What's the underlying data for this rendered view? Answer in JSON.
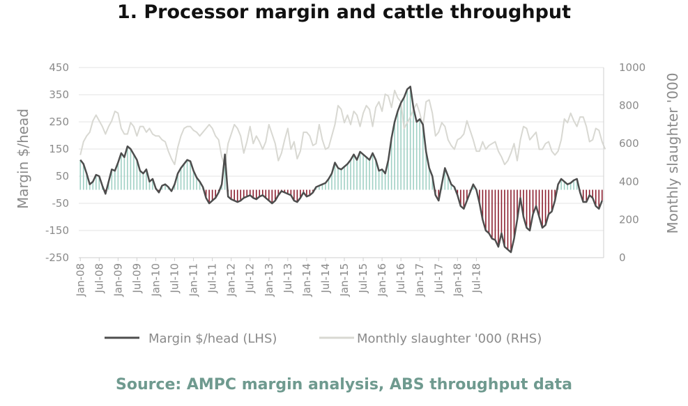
{
  "title": "1. Processor margin and cattle throughput",
  "source": "Source: AMPC margin analysis, ABS throughput data",
  "colors": {
    "margin_line": "#4d4d4d",
    "slaughter_line": "#d8d8d2",
    "positive_fill": "#9fd0c4",
    "negative_fill": "#8b1e2e",
    "grid": "#e3e3e3",
    "text": "#8a8a8a",
    "source_text": "#6f9a8f"
  },
  "chart_data": {
    "type": "line",
    "title": "1. Processor margin and cattle throughput",
    "ylabel_left": "Margin $/head",
    "ylabel_right": "Monthly slaughter '000",
    "ylim_left": [
      -250,
      450
    ],
    "ylim_right": [
      0,
      1000
    ],
    "yticks_left": [
      "450",
      "350",
      "250",
      "150",
      "50",
      "-50",
      "-150",
      "-250"
    ],
    "yticks_right": [
      "1000",
      "800",
      "600",
      "400",
      "200",
      "0"
    ],
    "x_tick_labels": [
      "Jan-08",
      "Jul-08",
      "Jan-09",
      "Jul-09",
      "Jan-10",
      "Jul-10",
      "Jan-11",
      "Jul-11",
      "Jan-12",
      "Jul-12",
      "Jan-13",
      "Jul-13",
      "Jan-14",
      "Jul-14",
      "Jan-15",
      "Jul-15",
      "Jan-16",
      "Jul-16",
      "Jan-17",
      "Jul-17",
      "Jan-18",
      "Jul-18"
    ],
    "grid": true,
    "legend_position": "bottom",
    "series": [
      {
        "name": "Margin $/head (LHS)",
        "axis": "left",
        "start": "Jan-08",
        "frequency": "monthly",
        "values": [
          110,
          95,
          60,
          20,
          30,
          55,
          50,
          15,
          -15,
          30,
          75,
          70,
          100,
          135,
          120,
          160,
          150,
          130,
          110,
          70,
          60,
          75,
          30,
          40,
          5,
          -10,
          15,
          20,
          10,
          -5,
          20,
          60,
          80,
          95,
          110,
          105,
          70,
          45,
          30,
          10,
          -30,
          -50,
          -40,
          -30,
          -10,
          20,
          130,
          -25,
          -35,
          -40,
          -45,
          -40,
          -30,
          -25,
          -20,
          -30,
          -35,
          -25,
          -20,
          -30,
          -40,
          -50,
          -40,
          -20,
          -5,
          -10,
          -15,
          -20,
          -40,
          -45,
          -30,
          -10,
          -25,
          -20,
          -10,
          10,
          15,
          20,
          25,
          40,
          60,
          100,
          80,
          75,
          85,
          95,
          110,
          130,
          110,
          140,
          130,
          120,
          110,
          135,
          110,
          70,
          75,
          60,
          110,
          190,
          250,
          290,
          320,
          340,
          370,
          380,
          300,
          250,
          260,
          240,
          140,
          80,
          50,
          -20,
          -40,
          20,
          80,
          50,
          20,
          10,
          -20,
          -60,
          -70,
          -40,
          -10,
          20,
          0,
          -50,
          -110,
          -150,
          -160,
          -180,
          -185,
          -210,
          -160,
          -210,
          -220,
          -230,
          -180,
          -110,
          -30,
          -100,
          -140,
          -150,
          -90,
          -60,
          -100,
          -140,
          -130,
          -90,
          -80,
          -40,
          20,
          40,
          30,
          20,
          25,
          35,
          40,
          -10,
          -45,
          -45,
          -20,
          -30,
          -60,
          -70,
          -40
        ]
      },
      {
        "name": "Monthly slaughter '000 (RHS)",
        "axis": "right",
        "start": "Jan-08",
        "frequency": "monthly",
        "values": [
          540,
          610,
          640,
          660,
          720,
          750,
          720,
          690,
          650,
          690,
          720,
          770,
          760,
          680,
          650,
          650,
          710,
          690,
          640,
          690,
          690,
          660,
          680,
          650,
          640,
          640,
          620,
          610,
          560,
          520,
          490,
          580,
          640,
          680,
          690,
          690,
          670,
          660,
          640,
          660,
          680,
          700,
          680,
          640,
          620,
          530,
          480,
          600,
          650,
          700,
          680,
          640,
          550,
          610,
          690,
          600,
          640,
          610,
          570,
          610,
          700,
          650,
          600,
          510,
          550,
          620,
          680,
          570,
          610,
          520,
          560,
          660,
          660,
          640,
          590,
          600,
          700,
          620,
          570,
          580,
          640,
          700,
          800,
          780,
          710,
          750,
          700,
          770,
          750,
          690,
          760,
          800,
          780,
          690,
          790,
          820,
          770,
          860,
          850,
          790,
          880,
          840,
          820,
          680,
          710,
          740,
          780,
          810,
          760,
          690,
          820,
          830,
          760,
          640,
          660,
          710,
          690,
          620,
          590,
          570,
          620,
          630,
          650,
          720,
          670,
          620,
          560,
          560,
          610,
          570,
          590,
          600,
          610,
          560,
          530,
          490,
          510,
          550,
          600,
          510,
          620,
          690,
          680,
          620,
          640,
          660,
          570,
          570,
          600,
          610,
          560,
          540,
          560,
          620,
          730,
          710,
          760,
          720,
          690,
          740,
          740,
          690,
          610,
          620,
          680,
          670,
          610,
          570
        ]
      }
    ]
  }
}
